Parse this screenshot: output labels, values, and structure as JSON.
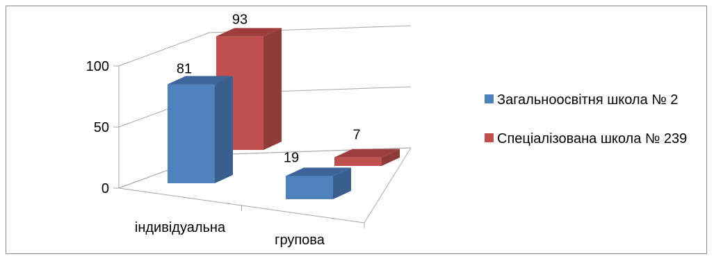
{
  "chart_data": {
    "type": "bar",
    "categories": [
      "індивідуальна",
      "групова"
    ],
    "series": [
      {
        "name": "Загальноосвітня школа № 2",
        "values": [
          81,
          19
        ],
        "color": "#4f81bd",
        "side_color": "#3a5f8f",
        "top_color": "#3d6599"
      },
      {
        "name": "Спеціалізована школа № 239",
        "values": [
          93,
          7
        ],
        "color": "#c0504d",
        "side_color": "#8f3b39",
        "top_color": "#9e3e3c"
      }
    ],
    "yticks": [
      0,
      50,
      100
    ],
    "ylim": [
      0,
      100
    ],
    "grid": true,
    "legend": "right",
    "data_labels": true
  }
}
